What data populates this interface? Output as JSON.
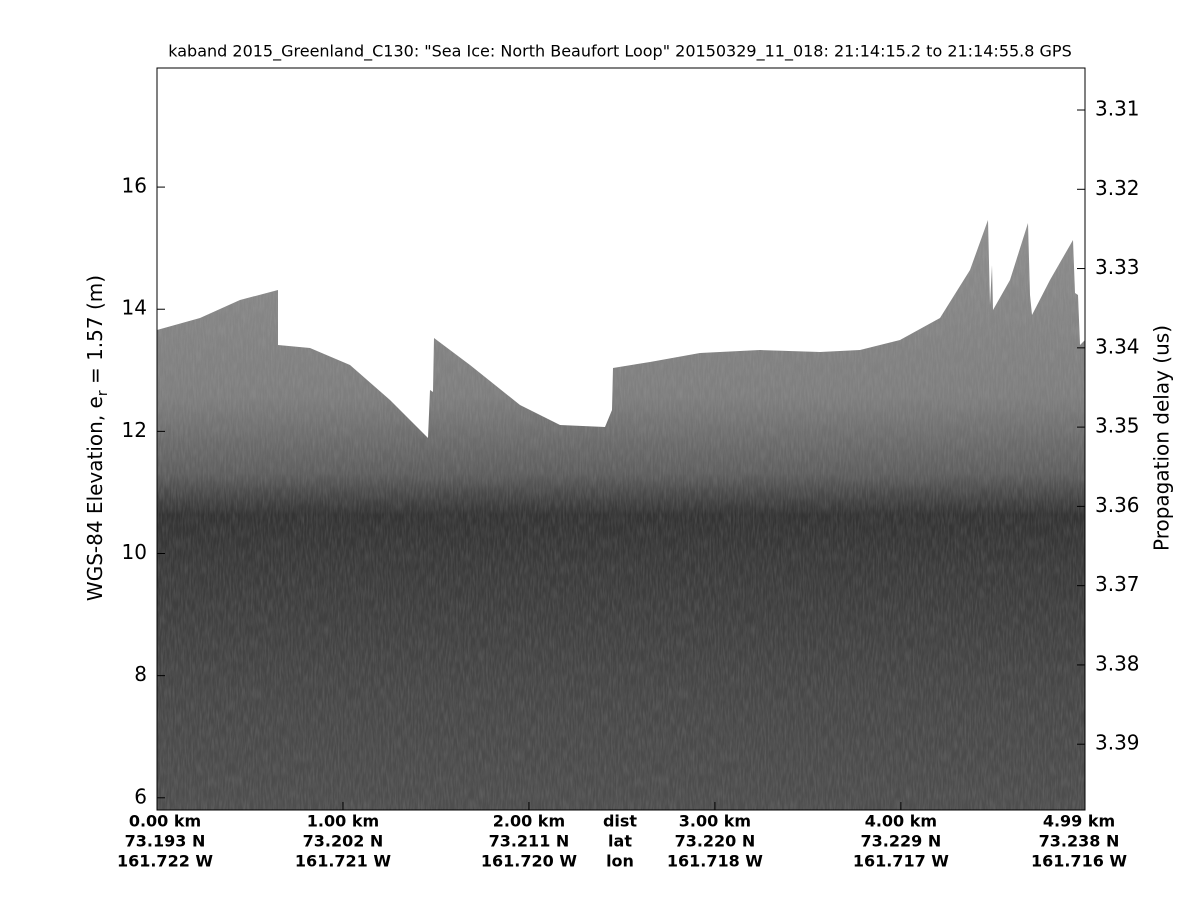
{
  "chart_data": {
    "type": "echogram",
    "title": "kaband 2015_Greenland_C130: \"Sea Ice: North Beaufort Loop\"  20150329_11_018: 21:14:15.2 to 21:14:55.8 GPS",
    "ylabel": {
      "text": "WGS-84 Elevation, e",
      "subscript": "r",
      "rest": " = 1.57 (m)"
    },
    "y2label": "Propagation delay (us)",
    "ylim": [
      5.8,
      17.95
    ],
    "yticks": [
      6,
      8,
      10,
      12,
      14,
      16
    ],
    "y2lim": [
      3.3983,
      3.3047
    ],
    "y2ticks": [
      3.31,
      3.32,
      3.33,
      3.34,
      3.35,
      3.36,
      3.37,
      3.38,
      3.39
    ],
    "xlim": [
      0,
      4.99
    ],
    "xticks": [
      {
        "value": 0,
        "label": "0.00 km"
      },
      {
        "value": 1,
        "label": "1.00 km"
      },
      {
        "value": 2,
        "label": "2.00 km"
      },
      {
        "value": 3,
        "label": "3.00 km"
      },
      {
        "value": 4,
        "label": "4.00 km"
      },
      {
        "value": 4.99,
        "label": "4.99 km"
      }
    ],
    "lat_labels": [
      "73.193 N",
      "73.202 N",
      "73.211 N",
      "73.220 N",
      "73.229 N",
      "73.238 N"
    ],
    "lon_labels": [
      "161.722 W",
      "161.721 W",
      "161.720 W",
      "161.718 W",
      "161.717 W",
      "161.716 W"
    ],
    "row_labels": [
      "dist",
      "lat",
      "lon"
    ]
  }
}
